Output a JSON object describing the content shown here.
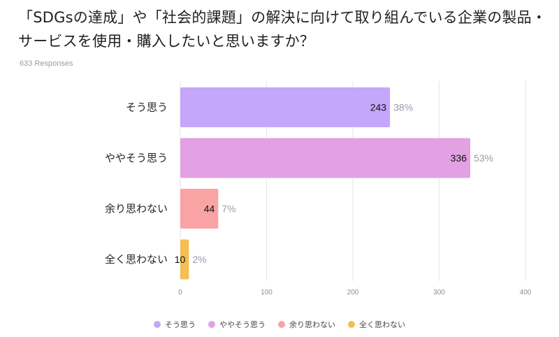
{
  "question": {
    "title": "「SDGsの達成」や「社会的課題」の解決に向けて取り組んでいる企業の製品・サービスを使用・購入したいと思いますか？",
    "responses": "633 Responses"
  },
  "colors": {
    "grid": "#e6e6ec",
    "axis_text": "#8c8c99",
    "value_text": "#111111",
    "percent_text": "#9a9aaa"
  },
  "chart_data": {
    "type": "bar",
    "orientation": "horizontal",
    "categories": [
      "そう思う",
      "ややそう思う",
      "余り思わない",
      "全く思わない"
    ],
    "values": [
      243,
      336,
      44,
      10
    ],
    "percents": [
      "38%",
      "53%",
      "7%",
      "2%"
    ],
    "colors": [
      "#c4a6fb",
      "#e2a1e3",
      "#f9a3a5",
      "#f5be52"
    ],
    "xlim": [
      0,
      400
    ],
    "xticks": [
      0,
      100,
      200,
      300,
      400
    ],
    "grid": true,
    "legend": "bottom-center"
  }
}
